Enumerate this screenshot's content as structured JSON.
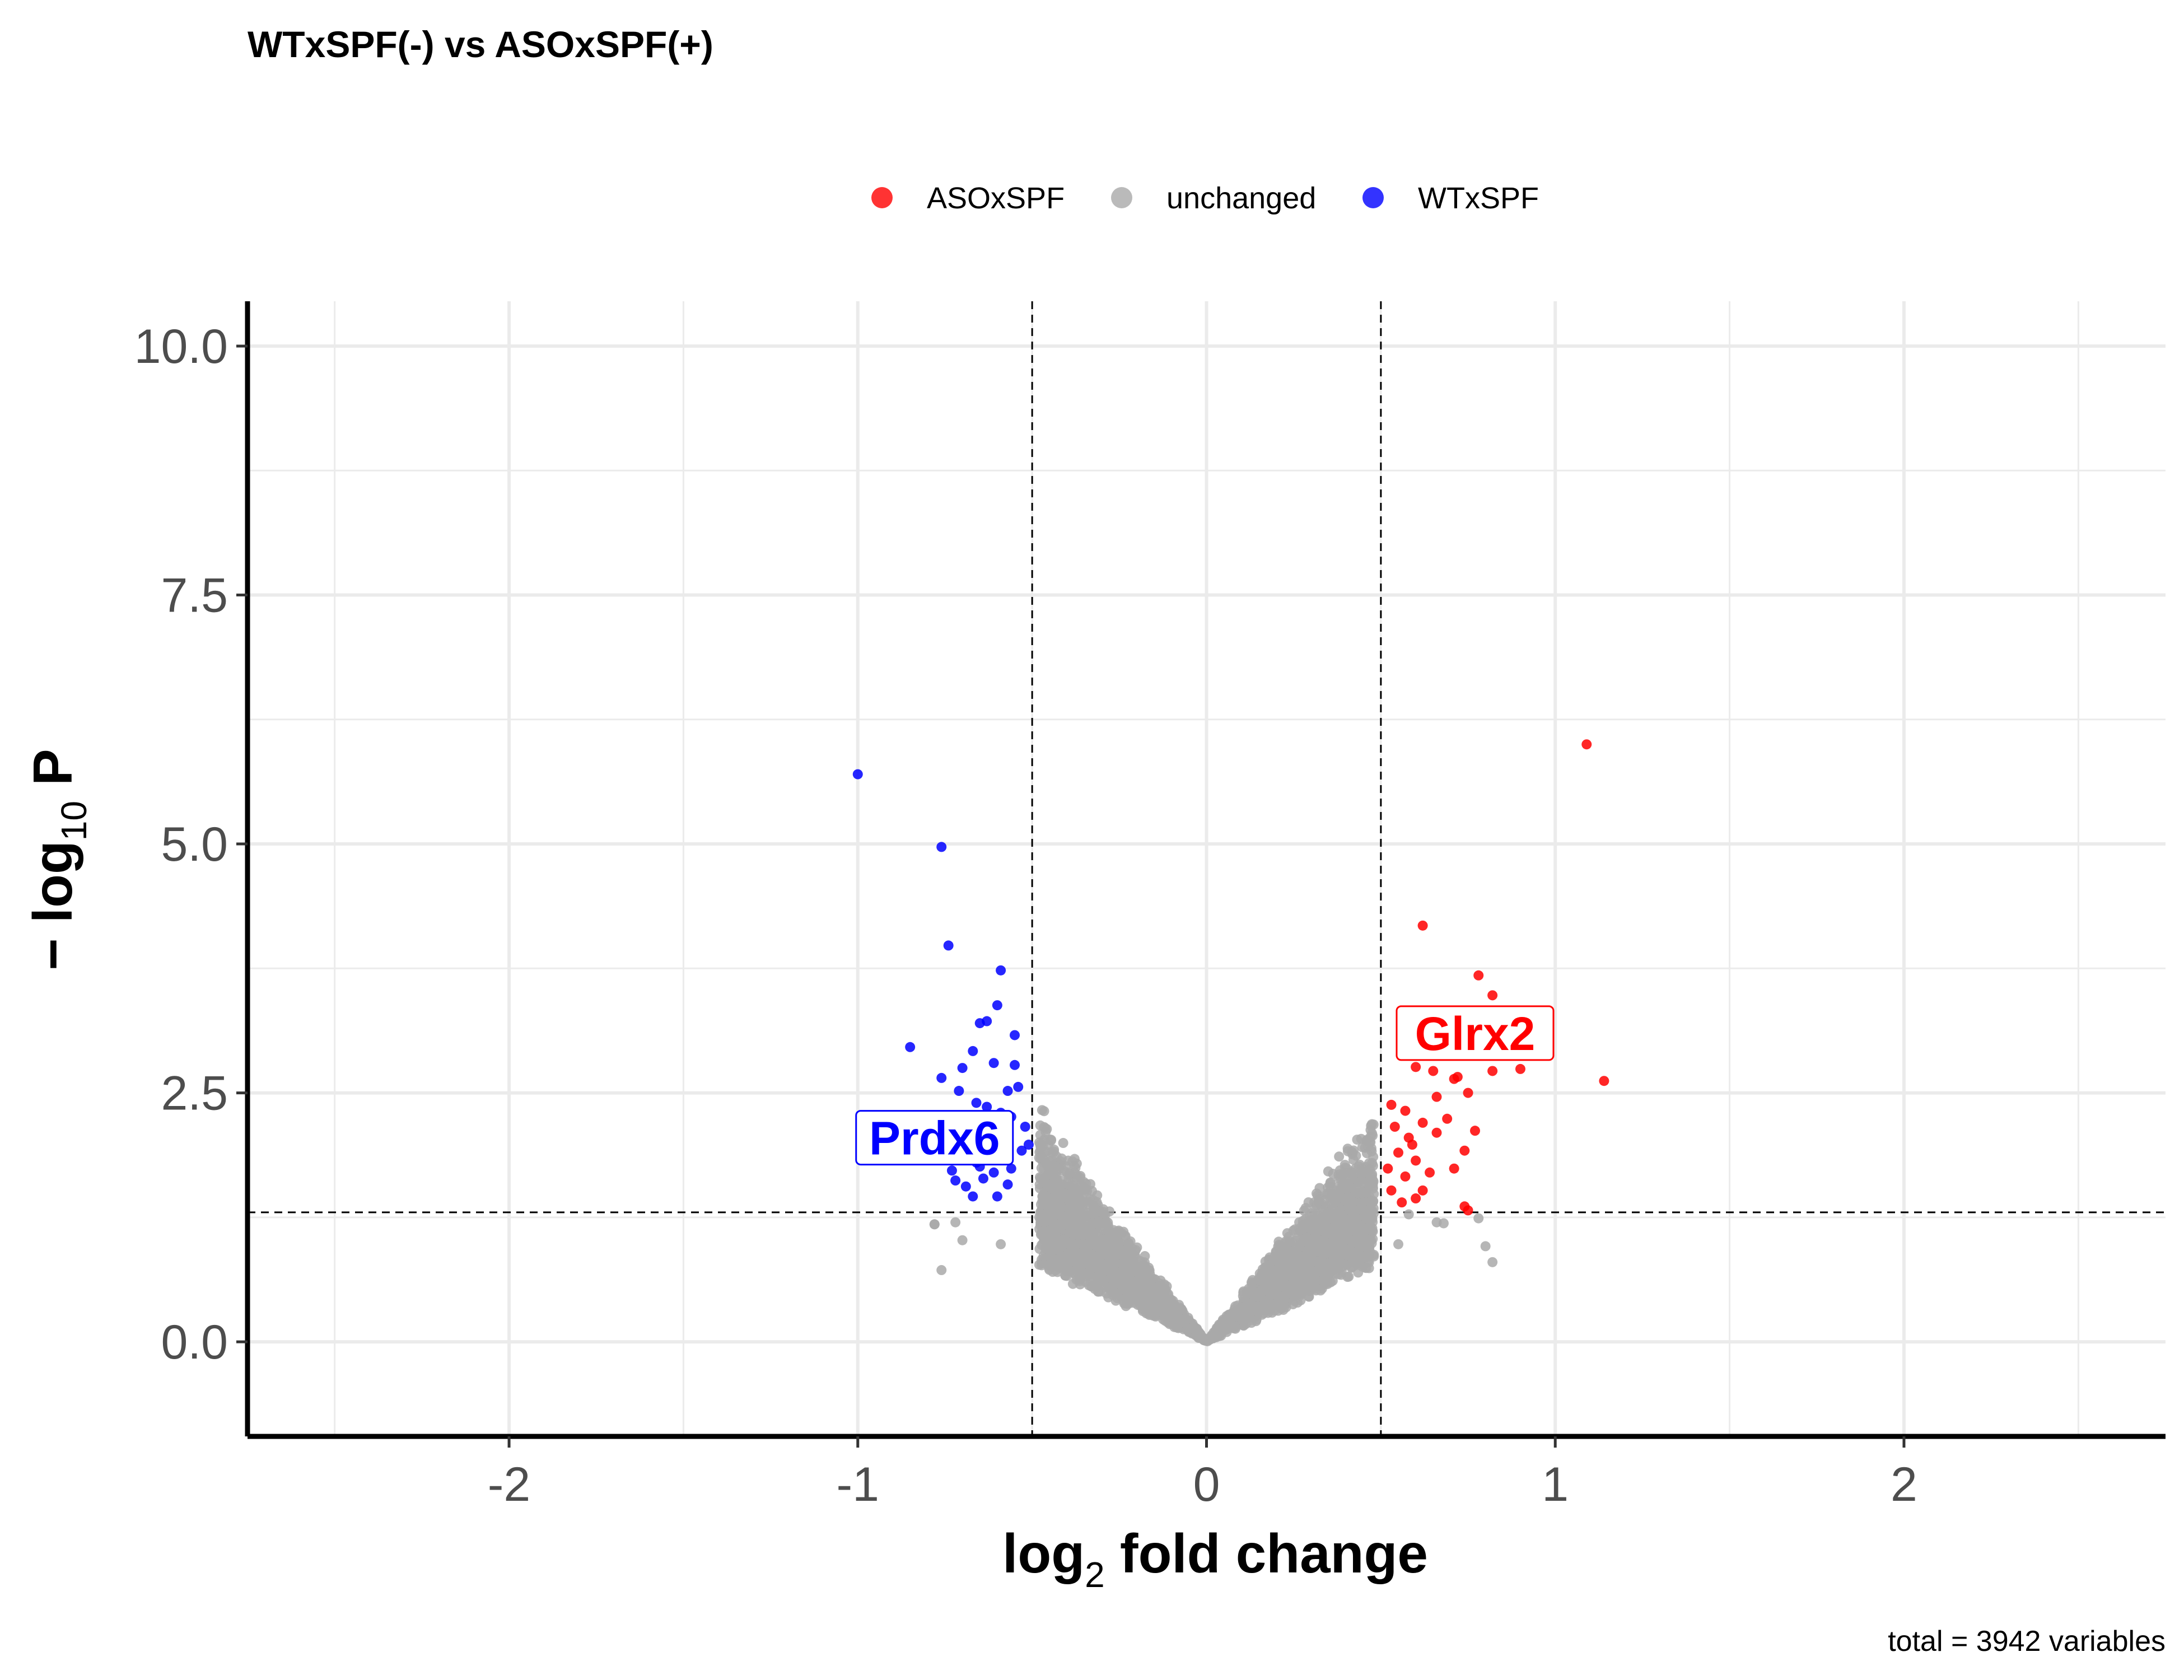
{
  "chart_data": {
    "type": "scatter",
    "title": "WTxSPF(-) vs ASOxSPF(+)",
    "xlabel": {
      "base": "log",
      "sub": "2",
      "rest": " fold change"
    },
    "ylabel": {
      "prefix": "− log",
      "sub": "10",
      "rest": " P"
    },
    "caption": "total = 3942 variables",
    "xlim": [
      -2.75,
      2.75
    ],
    "ylim": [
      -0.95,
      10.45
    ],
    "x_ticks": [
      -2,
      -1,
      0,
      1,
      2
    ],
    "x_tick_labels": [
      "-2",
      "-1",
      "0",
      "1",
      "2"
    ],
    "y_ticks": [
      0,
      2.5,
      5,
      7.5,
      10
    ],
    "y_tick_labels": [
      "0.0",
      "2.5",
      "5.0",
      "7.5",
      "10.0"
    ],
    "grid": true,
    "fc_cutoff": [
      -0.5,
      0.5
    ],
    "p_cutoff": 1.3,
    "legend_position": "top",
    "series": [
      {
        "name": "ASOxSPF",
        "color": "#ff0000",
        "points": [
          [
            1.09,
            6.0
          ],
          [
            1.14,
            2.62
          ],
          [
            0.62,
            4.18
          ],
          [
            0.78,
            3.68
          ],
          [
            0.82,
            3.48
          ],
          [
            0.58,
            3.12
          ],
          [
            0.68,
            3.02
          ],
          [
            0.74,
            2.88
          ],
          [
            0.56,
            2.92
          ],
          [
            0.6,
            2.76
          ],
          [
            0.65,
            2.72
          ],
          [
            0.71,
            2.64
          ],
          [
            0.82,
            2.72
          ],
          [
            0.9,
            2.74
          ],
          [
            0.75,
            2.5
          ],
          [
            0.66,
            2.46
          ],
          [
            0.53,
            2.38
          ],
          [
            0.57,
            2.32
          ],
          [
            0.62,
            2.2
          ],
          [
            0.69,
            2.24
          ],
          [
            0.77,
            2.12
          ],
          [
            0.66,
            2.1
          ],
          [
            0.59,
            1.98
          ],
          [
            0.54,
            2.16
          ],
          [
            0.55,
            1.9
          ],
          [
            0.6,
            1.82
          ],
          [
            0.52,
            1.74
          ],
          [
            0.57,
            1.66
          ],
          [
            0.64,
            1.7
          ],
          [
            0.71,
            1.74
          ],
          [
            0.74,
            1.92
          ],
          [
            0.53,
            1.52
          ],
          [
            0.6,
            1.44
          ],
          [
            0.62,
            1.52
          ],
          [
            0.56,
            1.4
          ],
          [
            0.74,
            1.36
          ],
          [
            0.75,
            1.32
          ],
          [
            0.65,
            2.9
          ],
          [
            0.72,
            2.66
          ],
          [
            0.58,
            2.05
          ]
        ]
      },
      {
        "name": "WTxSPF",
        "color": "#0000ff",
        "points": [
          [
            -1.0,
            5.7
          ],
          [
            -0.76,
            4.97
          ],
          [
            -0.74,
            3.98
          ],
          [
            -0.59,
            3.73
          ],
          [
            -0.6,
            3.38
          ],
          [
            -0.63,
            3.22
          ],
          [
            -0.65,
            3.2
          ],
          [
            -0.55,
            3.08
          ],
          [
            -0.85,
            2.96
          ],
          [
            -0.67,
            2.92
          ],
          [
            -0.7,
            2.75
          ],
          [
            -0.61,
            2.8
          ],
          [
            -0.55,
            2.78
          ],
          [
            -0.76,
            2.65
          ],
          [
            -0.71,
            2.52
          ],
          [
            -0.57,
            2.52
          ],
          [
            -0.54,
            2.56
          ],
          [
            -0.66,
            2.4
          ],
          [
            -0.59,
            2.3
          ],
          [
            -0.56,
            2.26
          ],
          [
            -0.52,
            2.16
          ],
          [
            -0.61,
            2.08
          ],
          [
            -0.68,
            2.04
          ],
          [
            -0.62,
            1.96
          ],
          [
            -0.58,
            1.86
          ],
          [
            -0.53,
            1.92
          ],
          [
            -0.65,
            1.76
          ],
          [
            -0.66,
            1.8
          ],
          [
            -0.73,
            1.72
          ],
          [
            -0.61,
            1.7
          ],
          [
            -0.56,
            1.74
          ],
          [
            -0.72,
            1.62
          ],
          [
            -0.69,
            1.56
          ],
          [
            -0.6,
            1.46
          ],
          [
            -0.67,
            1.46
          ],
          [
            -0.64,
            1.64
          ],
          [
            -0.57,
            1.58
          ],
          [
            -0.51,
            1.98
          ],
          [
            -0.63,
            2.36
          ],
          [
            -0.7,
            2.18
          ]
        ]
      },
      {
        "name": "unchanged",
        "color": "#a9a9a9",
        "generated_count": 3862
      }
    ],
    "labels": [
      {
        "text": "Prdx6",
        "series": "WTxSPF",
        "x": -0.78,
        "y": 2.05,
        "color": "#0000ff"
      },
      {
        "text": "Glrx2",
        "series": "ASOxSPF",
        "x": 0.77,
        "y": 3.1,
        "color": "#ff0000"
      }
    ]
  },
  "legend": {
    "items": [
      {
        "label": "ASOxSPF",
        "color": "#ff0000"
      },
      {
        "label": "unchanged",
        "color": "#a9a9a9"
      },
      {
        "label": "WTxSPF",
        "color": "#0000ff"
      }
    ]
  }
}
